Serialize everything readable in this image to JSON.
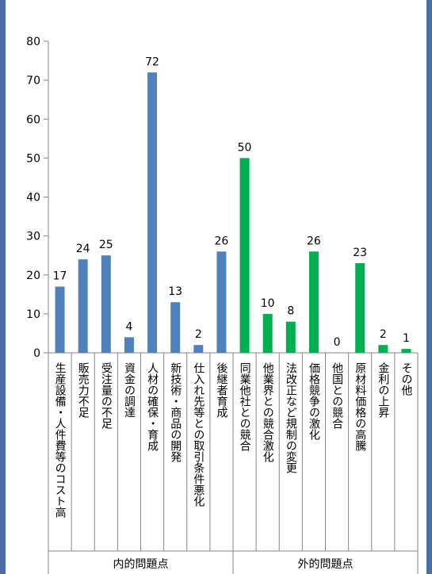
{
  "chart_data": {
    "type": "bar",
    "title": "",
    "xlabel": "",
    "ylabel": "",
    "ylim": [
      0,
      80
    ],
    "yticks": [
      0,
      10,
      20,
      30,
      40,
      50,
      60,
      70,
      80
    ],
    "grid": false,
    "legend": "none",
    "categories": [
      "生産設備・人件費等のコスト高",
      "販売力不足",
      "受注量の不足",
      "資金の調達",
      "人材の確保・育成",
      "新技術・商品の開発",
      "仕入れ先等との取引条件悪化",
      "後継者育成",
      "同業他社との競合",
      "他業界との競合激化",
      "法改正など規制の変更",
      "価格競争の激化",
      "他国との競合",
      "原材料価格の高騰",
      "金利の上昇",
      "その他"
    ],
    "values": [
      17,
      24,
      25,
      4,
      72,
      13,
      2,
      26,
      50,
      10,
      8,
      26,
      0,
      23,
      2,
      1
    ],
    "colors": [
      "#4f81bd",
      "#4f81bd",
      "#4f81bd",
      "#4f81bd",
      "#4f81bd",
      "#4f81bd",
      "#4f81bd",
      "#4f81bd",
      "#00b050",
      "#00b050",
      "#00b050",
      "#00b050",
      "#00b050",
      "#00b050",
      "#00b050",
      "#00b050"
    ],
    "groups": [
      {
        "label": "内的問題点",
        "count": 8
      },
      {
        "label": "外的問題点",
        "count": 8
      }
    ]
  }
}
